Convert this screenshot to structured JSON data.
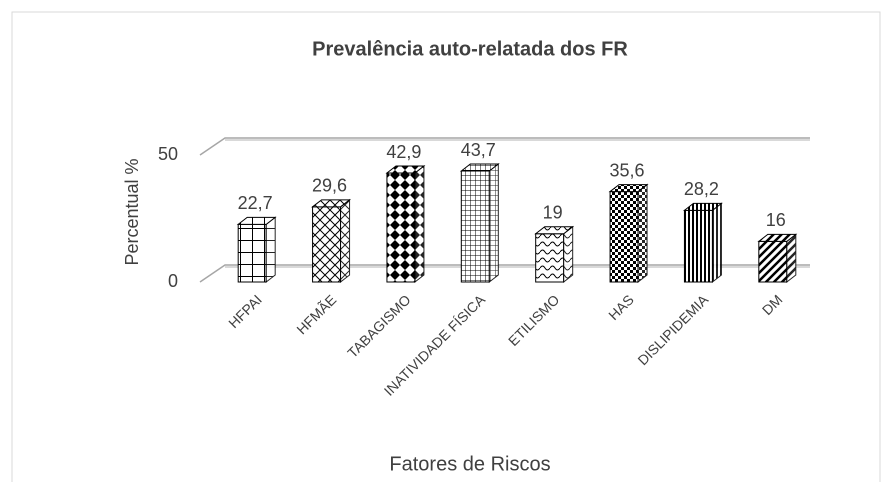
{
  "chart_data": {
    "type": "bar3d",
    "title": "Prevalência auto-relatada dos FR",
    "x_label": "Fatores de Riscos",
    "y_label": "Percentual %",
    "categories": [
      "HFPAI",
      "HFMÃE",
      "TABAGISMO",
      "INATIVIDADE FÍSICA",
      "ETILISMO",
      "HAS",
      "DISLIPIDEMIA",
      "DM"
    ],
    "values": [
      22.7,
      29.6,
      42.9,
      43.7,
      19,
      35.6,
      28.2,
      16
    ],
    "value_labels": [
      "22,7",
      "29,6",
      "42,9",
      "43,7",
      "19",
      "35,6",
      "28,2",
      "16"
    ],
    "ylim": [
      0,
      50
    ],
    "yticks": [
      0,
      50
    ],
    "grid": true,
    "color": "#000000"
  }
}
